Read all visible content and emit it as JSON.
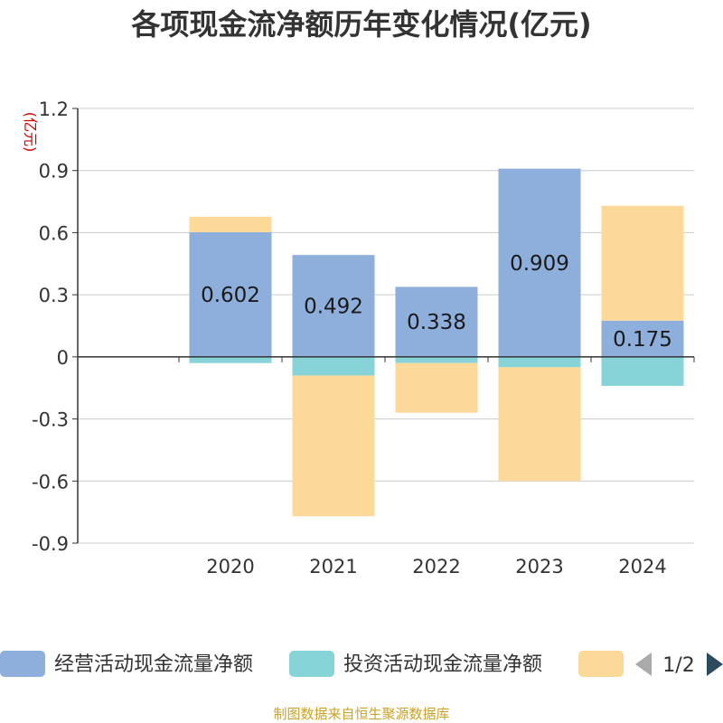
{
  "chart_data": {
    "type": "bar",
    "stacked": true,
    "title": "各项现金流净额历年变化情况(亿元)",
    "ylabel": "(亿元)",
    "categories": [
      "2020",
      "2021",
      "2022",
      "2023",
      "2024"
    ],
    "ylim": [
      -0.9,
      1.2
    ],
    "yticks": [
      "1.2",
      "0.9",
      "0.6",
      "0.3",
      "0",
      "-0.3",
      "-0.6",
      "-0.9"
    ],
    "grid": true,
    "series": [
      {
        "name": "经营活动现金流量净额",
        "color": "#8eaedb",
        "values": [
          0.602,
          0.492,
          0.338,
          0.909,
          0.175
        ],
        "labels": [
          "0.602",
          "0.492",
          "0.338",
          "0.909",
          "0.175"
        ]
      },
      {
        "name": "投资活动现金流量净额",
        "color": "#86d4d8",
        "values": [
          -0.03,
          -0.09,
          -0.03,
          -0.05,
          -0.14
        ]
      },
      {
        "name": "",
        "color": "#fdd999",
        "values": [
          0.075,
          -0.68,
          -0.24,
          -0.55,
          0.555
        ]
      }
    ],
    "legend": {
      "placement": "bottom",
      "page": "1/2"
    },
    "source": "制图数据来自恒生聚源数据库"
  }
}
